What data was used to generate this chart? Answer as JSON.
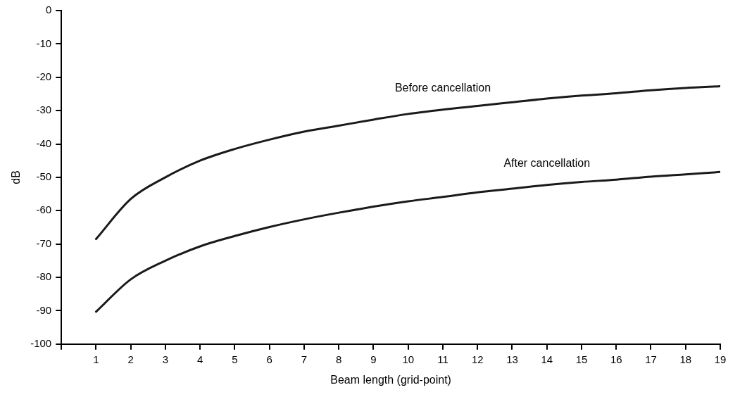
{
  "chart_data": {
    "type": "line",
    "xlabel": "Beam length (grid-point)",
    "ylabel": "dB",
    "x": [
      1,
      2,
      3,
      4,
      5,
      6,
      7,
      8,
      9,
      10,
      11,
      12,
      13,
      14,
      15,
      16,
      17,
      18,
      19
    ],
    "series": [
      {
        "name": "Before cancellation",
        "color": "#1a1a1a",
        "values": [
          -68.5,
          -56.5,
          -50,
          -45,
          -41.5,
          -38.7,
          -36.3,
          -34.5,
          -32.7,
          -31,
          -29.7,
          -28.6,
          -27.5,
          -26.4,
          -25.5,
          -24.8,
          -23.9,
          -23.2,
          -22.7
        ]
      },
      {
        "name": "After cancellation",
        "color": "#1a1a1a",
        "values": [
          -90.3,
          -80.6,
          -75,
          -70.7,
          -67.6,
          -64.9,
          -62.6,
          -60.6,
          -58.8,
          -57.2,
          -55.9,
          -54.5,
          -53.4,
          -52.3,
          -51.4,
          -50.7,
          -49.8,
          -49.1,
          -48.4
        ]
      }
    ],
    "xlim": [
      0,
      19
    ],
    "xticks": [
      {
        "value": 0,
        "label": null
      },
      1,
      2,
      3,
      4,
      5,
      6,
      7,
      8,
      9,
      10,
      11,
      12,
      13,
      14,
      15,
      16,
      17,
      18,
      19
    ],
    "ylim": [
      -100,
      0
    ],
    "yticks": [
      -100,
      -90,
      -80,
      -70,
      -60,
      -50,
      -40,
      -30,
      -20,
      -10,
      0
    ],
    "grid": false,
    "legend": false,
    "marker": "none",
    "line_style": "solid"
  }
}
